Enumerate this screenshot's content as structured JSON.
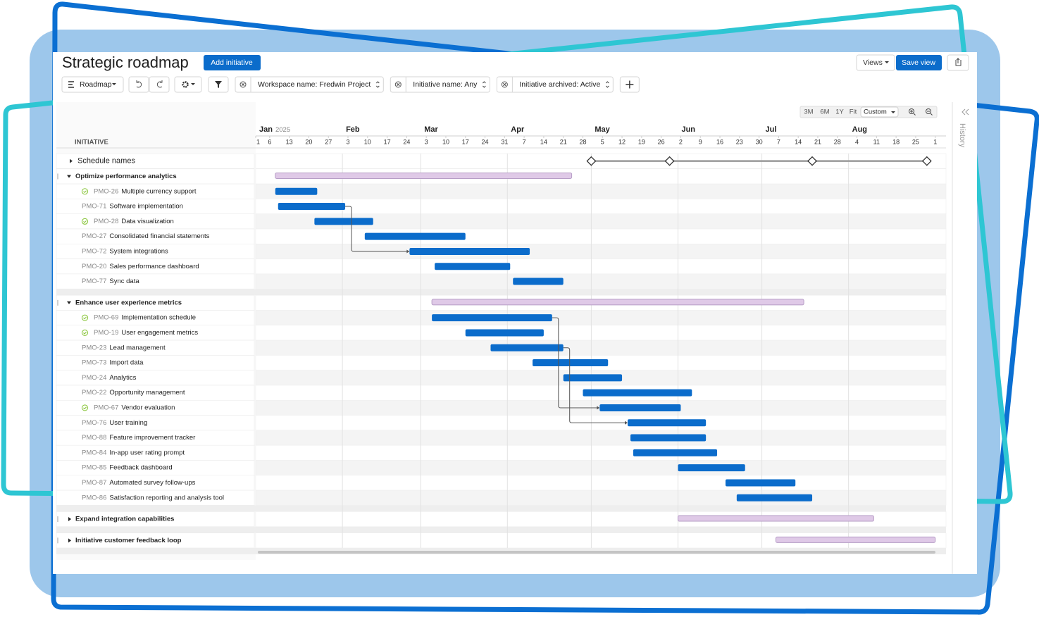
{
  "header": {
    "title": "Strategic roadmap",
    "add_button": "Add initiative",
    "views": "Views",
    "save_view": "Save view"
  },
  "toolbar": {
    "view": "Roadmap",
    "filters": [
      "Workspace name: Fredwin Project",
      "Initiative name: Any",
      "Initiative archived: Active"
    ]
  },
  "timeline": {
    "zoom": [
      "3M",
      "6M",
      "1Y",
      "Fit"
    ],
    "range": "Custom",
    "year": "2025",
    "months": [
      {
        "date": "2025-01-01",
        "label": "Jan"
      },
      {
        "date": "2025-02-01",
        "label": "Feb"
      },
      {
        "date": "2025-03-01",
        "label": "Mar"
      },
      {
        "date": "2025-04-01",
        "label": "Apr"
      },
      {
        "date": "2025-05-01",
        "label": "May"
      },
      {
        "date": "2025-06-01",
        "label": "Jun"
      },
      {
        "date": "2025-07-01",
        "label": "Jul"
      },
      {
        "date": "2025-08-01",
        "label": "Aug"
      }
    ],
    "ticks": [
      {
        "date": "2025-01-01",
        "label": "1"
      },
      {
        "date": "2025-01-06",
        "label": "6"
      },
      {
        "date": "2025-01-13",
        "label": "13"
      },
      {
        "date": "2025-01-20",
        "label": "20"
      },
      {
        "date": "2025-01-27",
        "label": "27"
      },
      {
        "date": "2025-02-03",
        "label": "3"
      },
      {
        "date": "2025-02-10",
        "label": "10"
      },
      {
        "date": "2025-02-17",
        "label": "17"
      },
      {
        "date": "2025-02-24",
        "label": "24"
      },
      {
        "date": "2025-03-03",
        "label": "3"
      },
      {
        "date": "2025-03-10",
        "label": "10"
      },
      {
        "date": "2025-03-17",
        "label": "17"
      },
      {
        "date": "2025-03-24",
        "label": "24"
      },
      {
        "date": "2025-03-31",
        "label": "31"
      },
      {
        "date": "2025-04-07",
        "label": "7"
      },
      {
        "date": "2025-04-14",
        "label": "14"
      },
      {
        "date": "2025-04-21",
        "label": "21"
      },
      {
        "date": "2025-04-28",
        "label": "28"
      },
      {
        "date": "2025-05-05",
        "label": "5"
      },
      {
        "date": "2025-05-12",
        "label": "12"
      },
      {
        "date": "2025-05-19",
        "label": "19"
      },
      {
        "date": "2025-05-26",
        "label": "26"
      },
      {
        "date": "2025-06-02",
        "label": "2"
      },
      {
        "date": "2025-06-09",
        "label": "9"
      },
      {
        "date": "2025-06-16",
        "label": "16"
      },
      {
        "date": "2025-06-23",
        "label": "23"
      },
      {
        "date": "2025-06-30",
        "label": "30"
      },
      {
        "date": "2025-07-07",
        "label": "7"
      },
      {
        "date": "2025-07-14",
        "label": "14"
      },
      {
        "date": "2025-07-21",
        "label": "21"
      },
      {
        "date": "2025-07-28",
        "label": "28"
      },
      {
        "date": "2025-08-04",
        "label": "4"
      },
      {
        "date": "2025-08-11",
        "label": "11"
      },
      {
        "date": "2025-08-18",
        "label": "18"
      },
      {
        "date": "2025-08-25",
        "label": "25"
      },
      {
        "date": "2025-09-01",
        "label": "1"
      }
    ]
  },
  "grid": {
    "column": "INITIATIVE",
    "schedule": {
      "label": "Schedule names",
      "milestones": [
        "2025-05-01",
        "2025-05-29",
        "2025-07-19",
        "2025-08-29"
      ]
    },
    "groups": [
      {
        "name": "Optimize performance analytics",
        "expanded": true,
        "start": "2025-01-08",
        "end": "2025-04-24",
        "tasks": [
          {
            "key": "PMO-26",
            "name": "Multiple currency support",
            "done": true,
            "start": "2025-01-08",
            "end": "2025-01-23"
          },
          {
            "key": "PMO-71",
            "name": "Software implementation",
            "done": false,
            "start": "2025-01-09",
            "end": "2025-02-02"
          },
          {
            "key": "PMO-28",
            "name": "Data visualization",
            "done": true,
            "start": "2025-01-22",
            "end": "2025-02-12"
          },
          {
            "key": "PMO-27",
            "name": "Consolidated financial statements",
            "done": false,
            "start": "2025-02-09",
            "end": "2025-03-17"
          },
          {
            "key": "PMO-72",
            "name": "System integrations",
            "done": false,
            "start": "2025-02-25",
            "end": "2025-04-09"
          },
          {
            "key": "PMO-20",
            "name": "Sales performance dashboard",
            "done": false,
            "start": "2025-03-06",
            "end": "2025-04-02"
          },
          {
            "key": "PMO-77",
            "name": "Sync data",
            "done": false,
            "start": "2025-04-03",
            "end": "2025-04-21"
          }
        ]
      },
      {
        "name": "Enhance user experience metrics",
        "expanded": true,
        "start": "2025-03-05",
        "end": "2025-07-16",
        "tasks": [
          {
            "key": "PMO-69",
            "name": "Implementation schedule",
            "done": true,
            "start": "2025-03-05",
            "end": "2025-04-17"
          },
          {
            "key": "PMO-19",
            "name": "User engagement metrics",
            "done": true,
            "start": "2025-03-17",
            "end": "2025-04-14"
          },
          {
            "key": "PMO-23",
            "name": "Lead management",
            "done": false,
            "start": "2025-03-26",
            "end": "2025-04-21"
          },
          {
            "key": "PMO-73",
            "name": "Import data",
            "done": false,
            "start": "2025-04-10",
            "end": "2025-05-07"
          },
          {
            "key": "PMO-24",
            "name": "Analytics",
            "done": false,
            "start": "2025-04-21",
            "end": "2025-05-12"
          },
          {
            "key": "PMO-22",
            "name": "Opportunity management",
            "done": false,
            "start": "2025-04-28",
            "end": "2025-06-06"
          },
          {
            "key": "PMO-67",
            "name": "Vendor evaluation",
            "done": true,
            "start": "2025-05-04",
            "end": "2025-06-02"
          },
          {
            "key": "PMO-76",
            "name": "User training",
            "done": false,
            "start": "2025-05-14",
            "end": "2025-06-11"
          },
          {
            "key": "PMO-88",
            "name": "Feature improvement tracker",
            "done": false,
            "start": "2025-05-15",
            "end": "2025-06-11"
          },
          {
            "key": "PMO-84",
            "name": "In-app user rating prompt",
            "done": false,
            "start": "2025-05-16",
            "end": "2025-06-15"
          },
          {
            "key": "PMO-85",
            "name": "Feedback dashboard",
            "done": false,
            "start": "2025-06-01",
            "end": "2025-06-25"
          },
          {
            "key": "PMO-87",
            "name": "Automated survey follow-ups",
            "done": false,
            "start": "2025-06-18",
            "end": "2025-07-13"
          },
          {
            "key": "PMO-86",
            "name": "Satisfaction reporting and analysis tool",
            "done": false,
            "start": "2025-06-22",
            "end": "2025-07-19"
          }
        ]
      },
      {
        "name": "Expand integration capabilities",
        "expanded": false,
        "start": "2025-06-01",
        "end": "2025-08-10",
        "tasks": []
      },
      {
        "name": "Initiative customer feedback loop",
        "expanded": false,
        "start": "2025-07-06",
        "end": "2025-09-01",
        "tasks": []
      }
    ]
  },
  "side": {
    "history": "History"
  }
}
